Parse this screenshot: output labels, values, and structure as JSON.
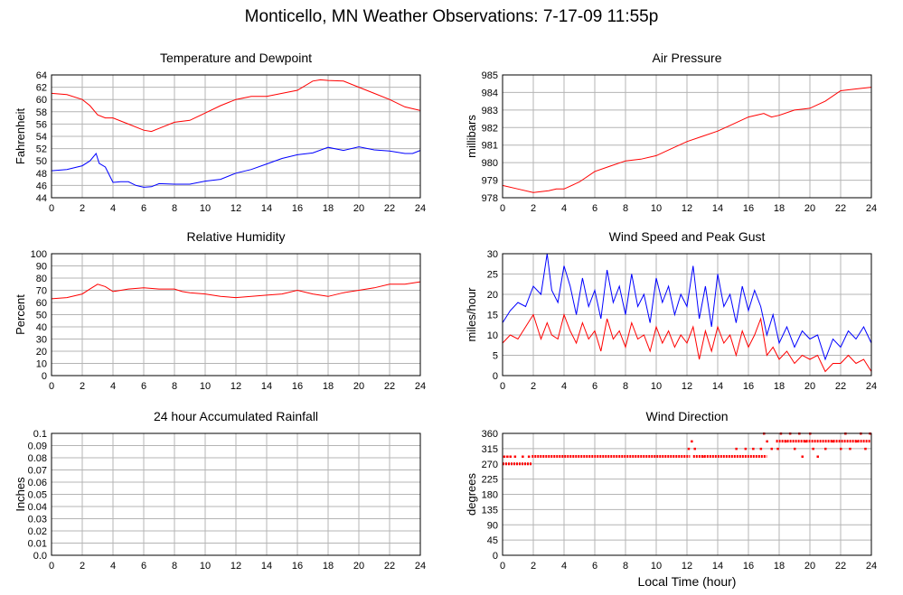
{
  "page": {
    "title": "Monticello, MN Weather Observations: 7-17-09 11:55p",
    "xlabel": "Local Time (hour)"
  },
  "chart_data": [
    {
      "id": "temp",
      "type": "line",
      "title": "Temperature and Dewpoint",
      "xlabel": "",
      "ylabel": "Fahrenheit",
      "xlim": [
        0,
        24
      ],
      "ylim": [
        44,
        64
      ],
      "xticks": [
        0,
        2,
        4,
        6,
        8,
        10,
        12,
        14,
        16,
        18,
        20,
        22,
        24
      ],
      "yticks": [
        44,
        46,
        48,
        50,
        52,
        54,
        56,
        58,
        60,
        62,
        64
      ],
      "grid": true,
      "series": [
        {
          "color": "#ff0000",
          "x": [
            0,
            1,
            2,
            2.5,
            3,
            3.5,
            4,
            5,
            6,
            6.5,
            7,
            8,
            9,
            10,
            11,
            12,
            13,
            14,
            15,
            16,
            17,
            17.5,
            18,
            19,
            20,
            21,
            22,
            23,
            24
          ],
          "y": [
            61,
            60.8,
            60,
            59,
            57.5,
            57,
            57,
            56,
            55,
            54.8,
            55.3,
            56.3,
            56.6,
            57.8,
            59,
            60,
            60.5,
            60.5,
            61,
            61.5,
            63,
            63.2,
            63.1,
            63,
            62,
            61,
            60,
            58.8,
            58.2
          ]
        },
        {
          "color": "#0000ff",
          "x": [
            0,
            1,
            2,
            2.5,
            2.9,
            3.1,
            3.5,
            4,
            4.5,
            5,
            5.5,
            6,
            6.5,
            7,
            8,
            9,
            10,
            11,
            12,
            13,
            14,
            15,
            16,
            17,
            18,
            19,
            20,
            21,
            22,
            23,
            23.5,
            24
          ],
          "y": [
            48.4,
            48.6,
            49.2,
            50,
            51.2,
            49.6,
            49,
            46.5,
            46.6,
            46.6,
            46,
            45.7,
            45.8,
            46.3,
            46.2,
            46.2,
            46.7,
            47,
            48,
            48.6,
            49.5,
            50.4,
            51,
            51.3,
            52.2,
            51.7,
            52.3,
            51.8,
            51.6,
            51.2,
            51.2,
            51.7
          ]
        }
      ]
    },
    {
      "id": "pressure",
      "type": "line",
      "title": "Air Pressure",
      "xlabel": "",
      "ylabel": "millibars",
      "xlim": [
        0,
        24
      ],
      "ylim": [
        978,
        985
      ],
      "xticks": [
        0,
        2,
        4,
        6,
        8,
        10,
        12,
        14,
        16,
        18,
        20,
        22,
        24
      ],
      "yticks": [
        978,
        979,
        980,
        981,
        982,
        983,
        984,
        985
      ],
      "grid": true,
      "series": [
        {
          "color": "#ff0000",
          "x": [
            0,
            1,
            2,
            3,
            3.5,
            4,
            5,
            6,
            7,
            8,
            9,
            10,
            11,
            12,
            13,
            14,
            15,
            16,
            17,
            17.5,
            18,
            19,
            20,
            21,
            22,
            23,
            24
          ],
          "y": [
            978.7,
            978.5,
            978.3,
            978.4,
            978.5,
            978.5,
            978.9,
            979.5,
            979.8,
            980.1,
            980.2,
            980.4,
            980.8,
            981.2,
            981.5,
            981.8,
            982.2,
            982.6,
            982.8,
            982.6,
            982.7,
            983,
            983.1,
            983.5,
            984.1,
            984.2,
            984.3
          ]
        }
      ]
    },
    {
      "id": "humidity",
      "type": "line",
      "title": "Relative Humidity",
      "xlabel": "",
      "ylabel": "Percent",
      "xlim": [
        0,
        24
      ],
      "ylim": [
        0,
        100
      ],
      "xticks": [
        0,
        2,
        4,
        6,
        8,
        10,
        12,
        14,
        16,
        18,
        20,
        22,
        24
      ],
      "yticks": [
        0,
        10,
        20,
        30,
        40,
        50,
        60,
        70,
        80,
        90,
        100
      ],
      "grid": true,
      "series": [
        {
          "color": "#ff0000",
          "x": [
            0,
            1,
            2,
            2.5,
            3,
            3.5,
            4,
            5,
            6,
            7,
            8,
            8.5,
            9,
            10,
            11,
            12,
            13,
            14,
            15,
            16,
            17,
            18,
            19,
            20,
            21,
            22,
            23,
            24
          ],
          "y": [
            63,
            64,
            67,
            71,
            75,
            73,
            69,
            71,
            72,
            71,
            71,
            69,
            68,
            67,
            65,
            64,
            65,
            66,
            67,
            70,
            67,
            65,
            68,
            70,
            72,
            75,
            75,
            77
          ]
        }
      ]
    },
    {
      "id": "wind",
      "type": "line",
      "title": "Wind Speed and Peak Gust",
      "xlabel": "",
      "ylabel": "miles/hour",
      "xlim": [
        0,
        24
      ],
      "ylim": [
        0,
        30
      ],
      "xticks": [
        0,
        2,
        4,
        6,
        8,
        10,
        12,
        14,
        16,
        18,
        20,
        22,
        24
      ],
      "yticks": [
        0,
        5,
        10,
        15,
        20,
        25,
        30
      ],
      "grid": true,
      "series": [
        {
          "color": "#0000ff",
          "x": [
            0,
            0.5,
            1,
            1.5,
            2,
            2.5,
            2.9,
            3.2,
            3.6,
            4,
            4.4,
            4.8,
            5.2,
            5.6,
            6,
            6.4,
            6.8,
            7.2,
            7.6,
            8,
            8.4,
            8.8,
            9.2,
            9.6,
            10,
            10.4,
            10.8,
            11.2,
            11.6,
            12,
            12.4,
            12.8,
            13.2,
            13.6,
            14,
            14.4,
            14.8,
            15.2,
            15.6,
            16,
            16.4,
            16.8,
            17.2,
            17.6,
            18,
            18.5,
            19,
            19.5,
            20,
            20.5,
            21,
            21.5,
            22,
            22.5,
            23,
            23.5,
            24
          ],
          "y": [
            13,
            16,
            18,
            17,
            22,
            20,
            30,
            21,
            18,
            27,
            22,
            15,
            24,
            17,
            21,
            14,
            26,
            18,
            22,
            15,
            25,
            17,
            20,
            13,
            24,
            18,
            22,
            15,
            20,
            17,
            27,
            14,
            22,
            12,
            25,
            17,
            20,
            13,
            22,
            16,
            21,
            17,
            10,
            15,
            8,
            12,
            7,
            11,
            9,
            10,
            4,
            9,
            7,
            11,
            9,
            12,
            8
          ]
        },
        {
          "color": "#ff0000",
          "x": [
            0,
            0.5,
            1,
            1.5,
            2,
            2.5,
            2.9,
            3.2,
            3.6,
            4,
            4.4,
            4.8,
            5.2,
            5.6,
            6,
            6.4,
            6.8,
            7.2,
            7.6,
            8,
            8.4,
            8.8,
            9.2,
            9.6,
            10,
            10.4,
            10.8,
            11.2,
            11.6,
            12,
            12.4,
            12.8,
            13.2,
            13.6,
            14,
            14.4,
            14.8,
            15.2,
            15.6,
            16,
            16.4,
            16.8,
            17.2,
            17.6,
            18,
            18.5,
            19,
            19.5,
            20,
            20.5,
            21,
            21.5,
            22,
            22.5,
            23,
            23.5,
            24
          ],
          "y": [
            8,
            10,
            9,
            12,
            15,
            9,
            13,
            10,
            9,
            15,
            11,
            8,
            13,
            9,
            11,
            6,
            14,
            9,
            11,
            7,
            13,
            9,
            10,
            6,
            12,
            8,
            11,
            7,
            10,
            8,
            12,
            4,
            11,
            6,
            12,
            8,
            10,
            5,
            11,
            7,
            10,
            14,
            5,
            7,
            4,
            6,
            3,
            5,
            4,
            5,
            1,
            3,
            3,
            5,
            3,
            4,
            1
          ]
        }
      ]
    },
    {
      "id": "rain",
      "type": "line",
      "title": "24 hour Accumulated Rainfall",
      "xlabel": "",
      "ylabel": "Inches",
      "xlim": [
        0,
        24
      ],
      "ylim": [
        0,
        0.1
      ],
      "xticks": [
        0,
        2,
        4,
        6,
        8,
        10,
        12,
        14,
        16,
        18,
        20,
        22,
        24
      ],
      "yticks": [
        0,
        0.01,
        0.02,
        0.03,
        0.04,
        0.05,
        0.06,
        0.07,
        0.08,
        0.09,
        0.1
      ],
      "ytick_labels": [
        "0.0",
        "0.01",
        "0.02",
        "0.03",
        "0.04",
        "0.05",
        "0.06",
        "0.07",
        "0.08",
        "0.09",
        "0.1"
      ],
      "grid": true,
      "series": [
        {
          "color": "#ff0000",
          "x": [
            0,
            24
          ],
          "y": [
            0,
            0
          ]
        }
      ]
    },
    {
      "id": "direction",
      "type": "scatter",
      "title": "Wind Direction",
      "xlabel": "Local Time (hour)",
      "ylabel": "degrees",
      "xlim": [
        0,
        24
      ],
      "ylim": [
        0,
        360
      ],
      "xticks": [
        0,
        2,
        4,
        6,
        8,
        10,
        12,
        14,
        16,
        18,
        20,
        22,
        24
      ],
      "yticks": [
        0,
        45,
        90,
        135,
        180,
        225,
        270,
        315,
        360
      ],
      "grid": true,
      "series": [
        {
          "color": "#ff0000",
          "segments": [
            {
              "x0": 0,
              "x1": 1.9,
              "y": 270
            },
            {
              "x0": 1.9,
              "x1": 12.2,
              "y": 292
            },
            {
              "x0": 12.4,
              "x1": 17.2,
              "y": 292
            },
            {
              "x0": 17.8,
              "x1": 24,
              "y": 337
            }
          ],
          "x": [
            0.1,
            0.3,
            0.5,
            0.8,
            1.3,
            1.7,
            12.1,
            12.3,
            12.5,
            13,
            15.2,
            15.8,
            16.3,
            16.8,
            17,
            17.2,
            17.5,
            17.9,
            18.1,
            18.4,
            18.7,
            19,
            19.3,
            19.5,
            19.7,
            20,
            20.2,
            20.5,
            21,
            21.5,
            22,
            22.3,
            22.6,
            23,
            23.3,
            23.6,
            23.9
          ],
          "y": [
            292,
            292,
            292,
            292,
            292,
            292,
            315,
            337,
            315,
            292,
            315,
            315,
            315,
            315,
            360,
            337,
            315,
            315,
            360,
            337,
            360,
            315,
            360,
            292,
            337,
            360,
            315,
            292,
            315,
            337,
            315,
            360,
            315,
            337,
            360,
            315,
            360
          ]
        }
      ]
    }
  ]
}
